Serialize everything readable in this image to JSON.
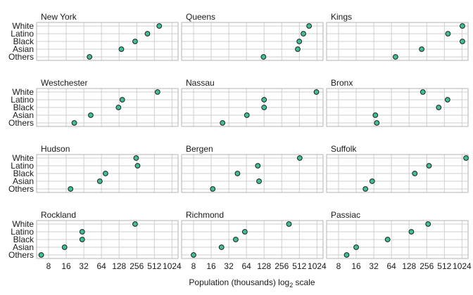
{
  "colors": {
    "point_fill": "#3dbf9a",
    "point_stroke": "#1f1f1f",
    "grid": "#cfcfcf",
    "frame": "#b3b3b3"
  },
  "chart_data": {
    "type": "scatter",
    "layout": "faceted dot plot, 4 rows x 3 columns",
    "x_scale": "log2",
    "xlabel": "Population (thousands) log",
    "xlabel_subscript": "2",
    "xlabel_suffix": " scale",
    "xlim": [
      5,
      1300
    ],
    "xticks": [
      8,
      16,
      32,
      64,
      128,
      256,
      512,
      1024
    ],
    "xtick_labels": [
      "8",
      "16",
      "32",
      "64",
      "128",
      "256",
      "512",
      "1024"
    ],
    "categories": [
      "White",
      "Latino",
      "Black",
      "Asian",
      "Others"
    ],
    "grid": true,
    "panels": [
      {
        "title": "New York",
        "values": [
          620,
          390,
          240,
          140,
          40
        ]
      },
      {
        "title": "Queens",
        "values": [
          750,
          600,
          510,
          480,
          125
        ]
      },
      {
        "title": "Kings",
        "values": [
          1040,
          590,
          1040,
          210,
          75
        ]
      },
      {
        "title": "Westchester",
        "values": [
          580,
          145,
          125,
          42,
          22
        ]
      },
      {
        "title": "Nassau",
        "values": [
          1000,
          128,
          128,
          65,
          25
        ]
      },
      {
        "title": "Bronx",
        "values": [
          220,
          580,
          410,
          34,
          36
        ]
      },
      {
        "title": "Hudson",
        "values": [
          250,
          265,
          75,
          60,
          19
        ]
      },
      {
        "title": "Bergen",
        "values": [
          520,
          100,
          45,
          105,
          17
        ]
      },
      {
        "title": "Suffolk",
        "values": [
          1200,
          280,
          160,
          30,
          23
        ]
      },
      {
        "title": "Rockland",
        "values": [
          240,
          30,
          30,
          15,
          6
        ]
      },
      {
        "title": "Richmond",
        "values": [
          340,
          60,
          42,
          24,
          8
        ]
      },
      {
        "title": "Passiac",
        "values": [
          270,
          140,
          55,
          16,
          11
        ]
      }
    ]
  }
}
